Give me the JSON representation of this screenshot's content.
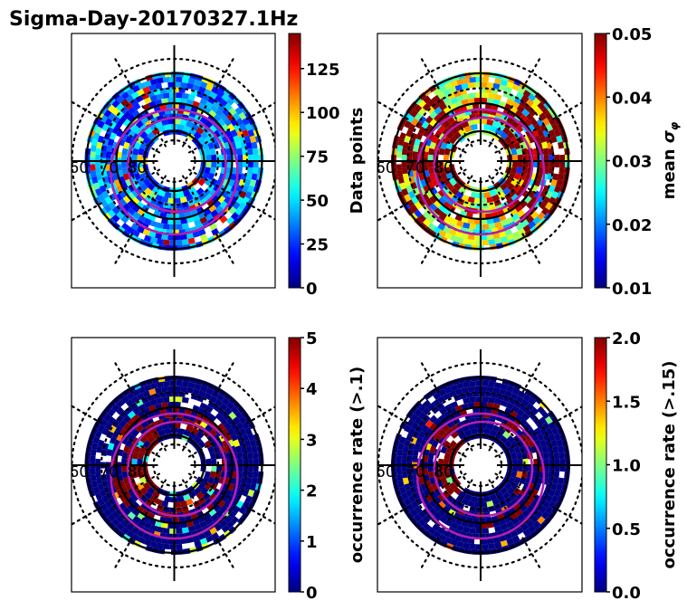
{
  "figure": {
    "title": "Sigma-Day-20170327.1Hz"
  },
  "chart_data": [
    {
      "type": "heatmap",
      "projection": "polar (magnetic latitude / MLT)",
      "title": "",
      "colormap": "jet",
      "colorbar": {
        "label": "Data points",
        "label_math": "",
        "range": [
          0,
          145
        ],
        "ticks": [
          0,
          25,
          50,
          75,
          100,
          125
        ],
        "tick_labels": [
          "0",
          "25",
          "50",
          "75",
          "100",
          "125"
        ]
      },
      "ring_labels": [
        "60",
        "70",
        "80"
      ],
      "latitude_circles_solid": [
        60,
        70,
        80
      ],
      "latitude_circles_dotted": [
        55,
        85
      ],
      "dominant_values": "mostly 10-60 (blue/cyan), scattered 75-145",
      "panel_position": "top-left"
    },
    {
      "type": "heatmap",
      "projection": "polar (magnetic latitude / MLT)",
      "colormap": "jet",
      "colorbar": {
        "label": "mean ",
        "label_math": "σφ",
        "range": [
          0.01,
          0.05
        ],
        "ticks": [
          0.01,
          0.02,
          0.03,
          0.04,
          0.05
        ],
        "tick_labels": [
          "0.01",
          "0.02",
          "0.03",
          "0.04",
          "0.05"
        ]
      },
      "ring_labels": [
        "60",
        "70",
        "80"
      ],
      "latitude_circles_solid": [
        60,
        70,
        80
      ],
      "latitude_circles_dotted": [
        55,
        85
      ],
      "dominant_values": "0.03-0.05 (green/yellow/dark red), saturated near dawn/dusk",
      "panel_position": "top-right"
    },
    {
      "type": "heatmap",
      "projection": "polar (magnetic latitude / MLT)",
      "colormap": "jet",
      "colorbar": {
        "label": "occurrence rate (>.1)",
        "label_math": "",
        "range": [
          0,
          5
        ],
        "ticks": [
          0,
          1,
          2,
          3,
          4,
          5
        ],
        "tick_labels": [
          "0",
          "1",
          "2",
          "3",
          "4",
          "5"
        ]
      },
      "ring_labels": [
        "60",
        "70",
        "80"
      ],
      "latitude_circles_solid": [
        60,
        70,
        80
      ],
      "latitude_circles_dotted": [
        55,
        85
      ],
      "dominant_values": "mostly 0 (dark blue) with saturated 5 (dark red) bands",
      "panel_position": "bottom-left"
    },
    {
      "type": "heatmap",
      "projection": "polar (magnetic latitude / MLT)",
      "colormap": "jet",
      "colorbar": {
        "label": "occurrence rate (>.15)",
        "label_math": "",
        "range": [
          0.0,
          2.0
        ],
        "ticks": [
          0.0,
          0.5,
          1.0,
          1.5,
          2.0
        ],
        "tick_labels": [
          "0.0",
          "0.5",
          "1.0",
          "1.5",
          "2.0"
        ]
      },
      "ring_labels": [
        "60",
        "70",
        "80"
      ],
      "latitude_circles_solid": [
        60,
        70,
        80
      ],
      "latitude_circles_dotted": [
        55,
        85
      ],
      "dominant_values": "mostly 0.0 (dark blue) with saturated 2.0 (dark red) patches",
      "panel_position": "bottom-right"
    }
  ],
  "colors": {
    "auroral_oval": "#b31fb3",
    "grid": "#000000"
  }
}
